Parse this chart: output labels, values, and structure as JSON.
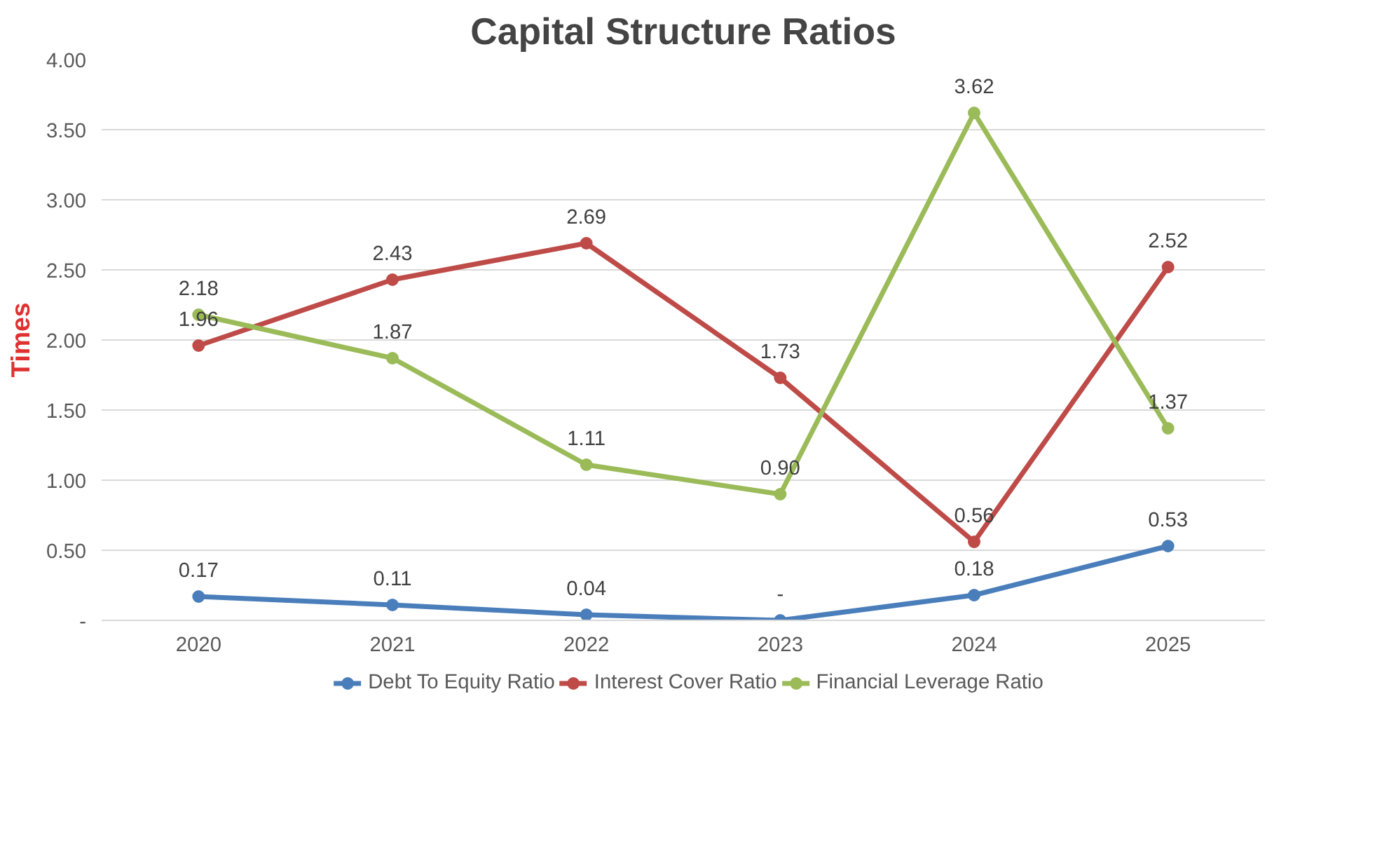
{
  "chart_data": {
    "type": "line",
    "title": "Capital Structure Ratios",
    "ylabel": "Times",
    "categories": [
      "2020",
      "2021",
      "2022",
      "2023",
      "2024",
      "2025"
    ],
    "series": [
      {
        "name": "Debt To Equity Ratio",
        "color": "#4a7ebb",
        "values": [
          0.17,
          0.11,
          0.04,
          0,
          0.18,
          0.53
        ],
        "value_labels": [
          "0.17",
          "0.11",
          "0.04",
          "-",
          "0.18",
          "0.53"
        ]
      },
      {
        "name": "Interest Cover Ratio",
        "color": "#be4b48",
        "values": [
          1.96,
          2.43,
          2.69,
          1.73,
          0.56,
          2.52
        ],
        "value_labels": [
          "1.96",
          "2.43",
          "2.69",
          "1.73",
          "0.56",
          "2.52"
        ]
      },
      {
        "name": "Financial Leverage Ratio",
        "color": "#9bbb59",
        "values": [
          2.18,
          1.87,
          1.11,
          0.9,
          3.62,
          1.37
        ],
        "value_labels": [
          "2.18",
          "1.87",
          "1.11",
          "0.90",
          "3.62",
          "1.37"
        ]
      }
    ],
    "ylim": [
      0,
      4
    ],
    "yticks": [
      {
        "value": 0,
        "label": "-"
      },
      {
        "value": 0.5,
        "label": "0.50"
      },
      {
        "value": 1,
        "label": "1.00"
      },
      {
        "value": 1.5,
        "label": "1.50"
      },
      {
        "value": 2,
        "label": "2.00"
      },
      {
        "value": 2.5,
        "label": "2.50"
      },
      {
        "value": 3,
        "label": "3.00"
      },
      {
        "value": 3.5,
        "label": "3.50"
      },
      {
        "value": 4,
        "label": "4.00"
      }
    ],
    "grid": "y",
    "legend": "bottom",
    "marker": "circle",
    "line_style": "solid"
  }
}
